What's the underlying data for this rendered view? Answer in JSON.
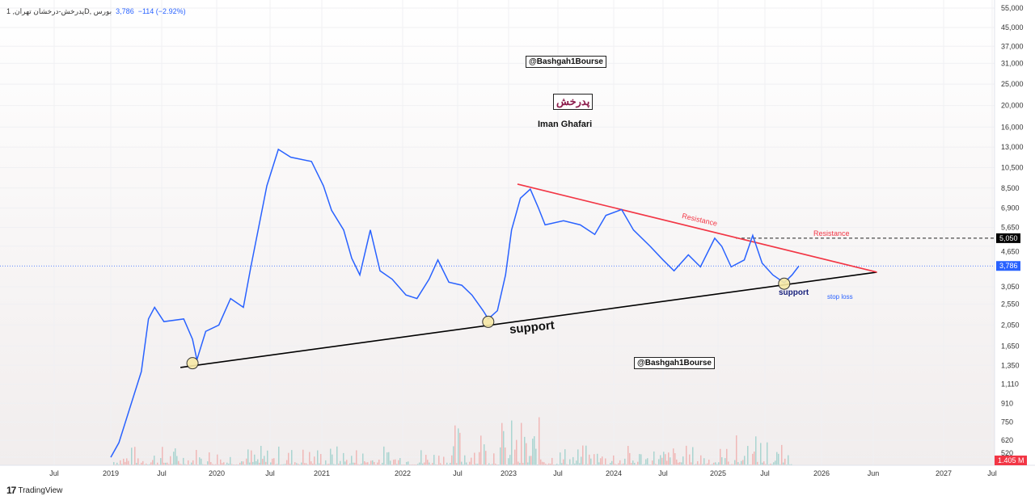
{
  "header": {
    "symbol": "پدرخش-درخشان تهران, 1D, بورس",
    "price": "3,786",
    "change": "−114 (−2.92%)"
  },
  "annotations": {
    "watermark_top": "@Bashgah1Bourse",
    "watermark_bottom": "@Bashgah1Bourse",
    "symbol_fa": "پدرخش",
    "author": "Iman Ghafari",
    "resistance_on_line": "Resistance",
    "resistance_label": "Resistance",
    "support_big": "support",
    "support_small": "support",
    "stop_loss": "stop loss"
  },
  "price_axis": {
    "ticks": [
      "55,000",
      "45,000",
      "37,000",
      "31,000",
      "25,000",
      "20,000",
      "16,000",
      "13,000",
      "10,500",
      "8,500",
      "6,900",
      "5,650",
      "4,650",
      "3,050",
      "2,550",
      "2,050",
      "1,650",
      "1,350",
      "1,110",
      "910",
      "750",
      "620",
      "520"
    ],
    "last_price": "3,786",
    "level_price": "5,050",
    "volume": "1.405 M"
  },
  "time_axis": {
    "ticks": [
      "Jul",
      "2019",
      "Jul",
      "2020",
      "Jul",
      "2021",
      "2022",
      "Jul",
      "2023",
      "Jul",
      "2024",
      "Jul",
      "2025",
      "Jul",
      "2026",
      "Jun",
      "2027",
      "Jul"
    ]
  },
  "footer": {
    "brand": "TradingView"
  },
  "colors": {
    "price": "#2962ff",
    "support": "#000000",
    "resistance": "#f23645",
    "vol_up": "#26a69a",
    "vol_down": "#ef5350"
  },
  "chart_data": {
    "type": "line",
    "scale": "log",
    "ylim": [
      520,
      55000
    ],
    "series": [
      {
        "name": "price",
        "x": [
          2019.0,
          2019.08,
          2019.2,
          2019.3,
          2019.37,
          2019.43,
          2019.52,
          2019.7,
          2019.78,
          2019.82,
          2019.9,
          2020.02,
          2020.13,
          2020.25,
          2020.32,
          2020.47,
          2020.58,
          2020.7,
          2020.9,
          2021.02,
          2021.12,
          2021.27,
          2021.37,
          2021.47,
          2021.6,
          2021.72,
          2021.87,
          2022.03,
          2022.13,
          2022.24,
          2022.32,
          2022.42,
          2022.54,
          2022.64,
          2022.75,
          2022.8,
          2022.89,
          2022.97,
          2023.03,
          2023.12,
          2023.22,
          2023.3,
          2023.37,
          2023.55,
          2023.7,
          2023.83,
          2023.93,
          2024.08,
          2024.2,
          2024.37,
          2024.5,
          2024.6,
          2024.73,
          2024.84,
          2024.97,
          2025.04,
          2025.14,
          2025.28,
          2025.37,
          2025.47,
          2025.57,
          2025.67,
          2025.74,
          2025.8
        ],
        "y": [
          520,
          605,
          905,
          1265,
          2185,
          2465,
          2125,
          2185,
          1770,
          1430,
          1920,
          2050,
          2700,
          2465,
          3750,
          8700,
          12700,
          11700,
          11200,
          8700,
          6750,
          5500,
          4100,
          3450,
          5500,
          3600,
          3300,
          2800,
          2700,
          3300,
          4030,
          3200,
          3100,
          2800,
          2380,
          2185,
          2380,
          3450,
          5500,
          7650,
          8400,
          6950,
          5800,
          6050,
          5800,
          5250,
          6400,
          6800,
          5500,
          4640,
          4030,
          3600,
          4250,
          3750,
          5050,
          4640,
          3750,
          4030,
          5200,
          3900,
          3450,
          3180,
          3450,
          3786
        ]
      }
    ],
    "trendlines": [
      {
        "name": "support",
        "from": [
          2019.67,
          1320
        ],
        "to": [
          2026.45,
          3550
        ]
      },
      {
        "name": "resistance",
        "from": [
          2023.09,
          8850
        ],
        "to": [
          2026.45,
          3550
        ]
      }
    ],
    "levels": {
      "last": 3786,
      "resistance": 5050
    },
    "touch_points": [
      [
        2019.78,
        1380
      ],
      [
        2022.8,
        2120
      ],
      [
        2025.67,
        3150
      ]
    ]
  }
}
